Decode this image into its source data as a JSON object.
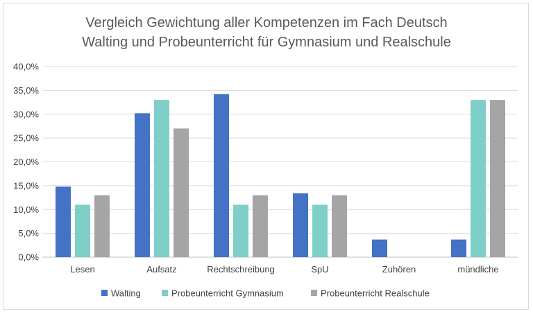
{
  "chart_data": {
    "type": "bar",
    "title": [
      "Vergleich Gewichtung aller Kompetenzen im Fach Deutsch",
      "Walting und Probeunterricht für Gymnasium und Realschule"
    ],
    "xlabel": "",
    "ylabel": "",
    "categories": [
      "Lesen",
      "Aufsatz",
      "Rechtschreibung",
      "SpU",
      "Zuhören",
      "mündliche"
    ],
    "series": [
      {
        "name": "Walting",
        "color": "#4472C4",
        "values": [
          14.8,
          30.2,
          34.2,
          13.4,
          3.7,
          3.7
        ]
      },
      {
        "name": "Probeunterricht Gymnasium",
        "color": "#7DCFC8",
        "values": [
          11.0,
          33.0,
          11.0,
          11.0,
          0,
          33.0
        ]
      },
      {
        "name": "Probeunterricht Realschule",
        "color": "#A5A5A5",
        "values": [
          13.0,
          27.0,
          13.0,
          13.0,
          0,
          33.0
        ]
      }
    ],
    "ylim": [
      0,
      40
    ],
    "yticks": [
      "0,0%",
      "5,0%",
      "10,0%",
      "15,0%",
      "20,0%",
      "25,0%",
      "30,0%",
      "35,0%",
      "40,0%"
    ],
    "grid": true,
    "gridColor": "#d9d9d9",
    "legend": "bottom"
  }
}
